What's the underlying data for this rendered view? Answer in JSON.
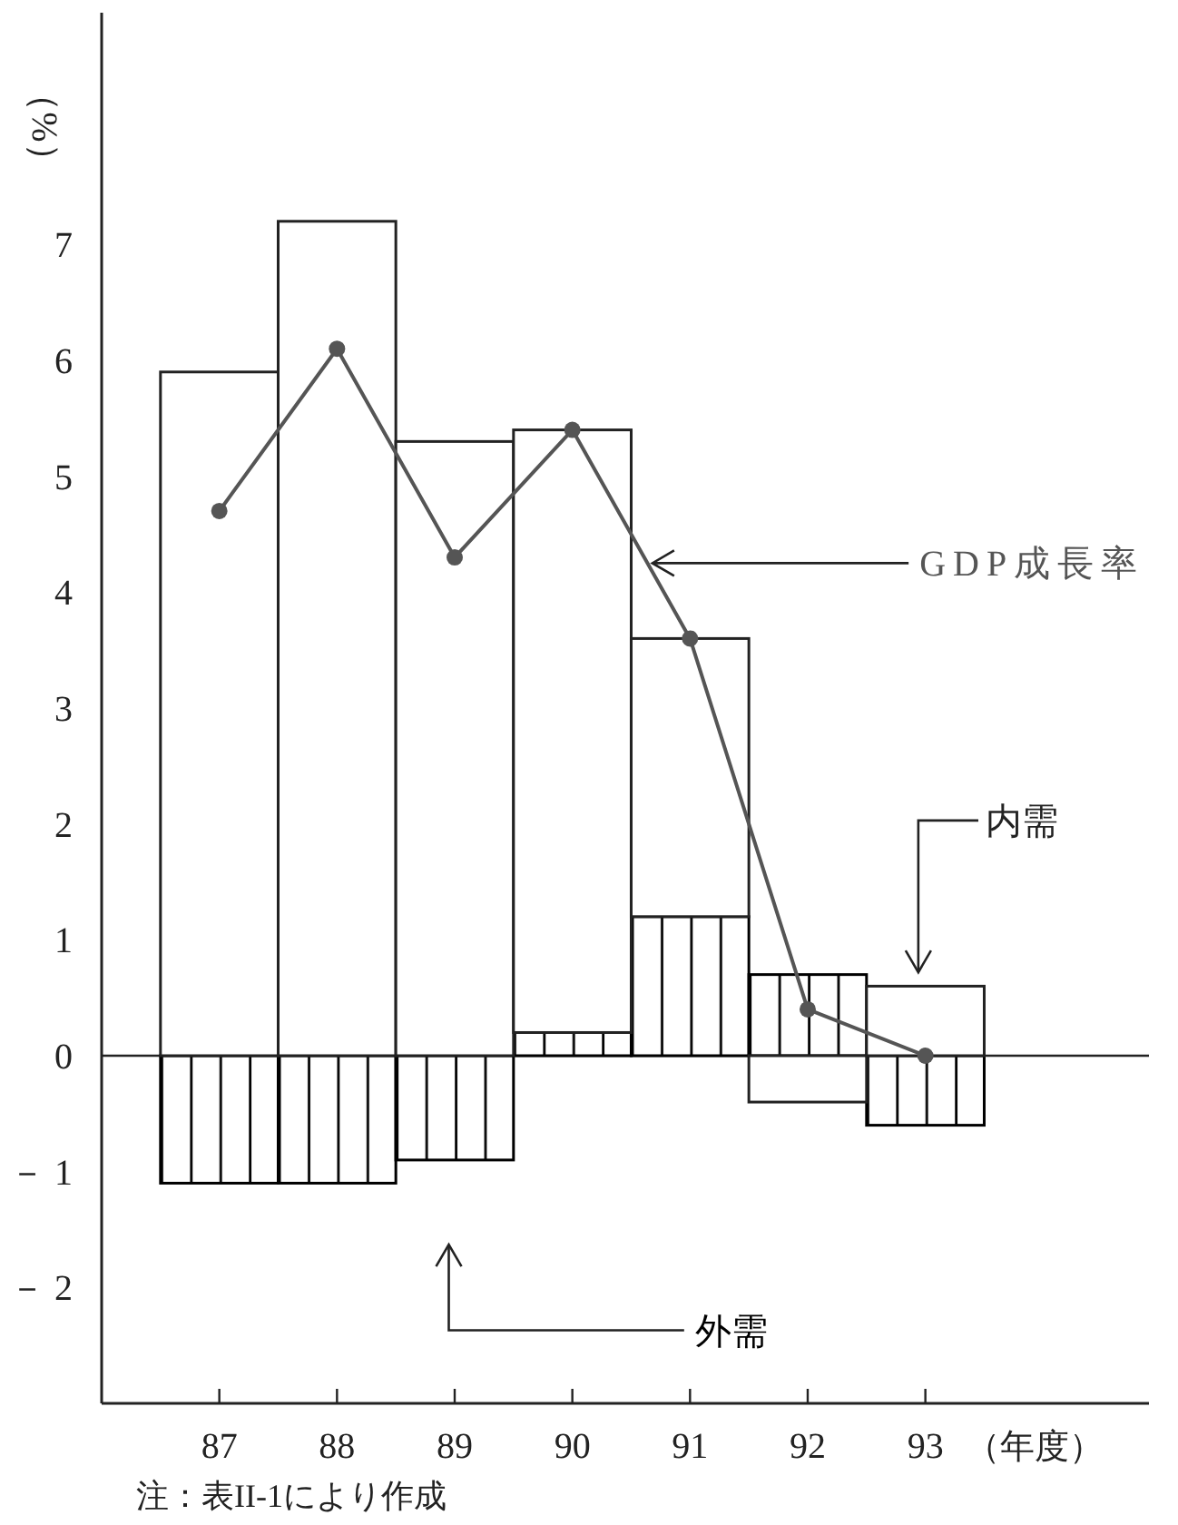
{
  "chart_data": {
    "type": "bar",
    "stacked": true,
    "ylabel": "（%）",
    "xlabel": "（年度）",
    "categories": [
      "87",
      "88",
      "89",
      "90",
      "91",
      "92",
      "93"
    ],
    "ylim": [
      -3,
      9
    ],
    "yticks": [
      {
        "value": -2,
        "label": "－ 2"
      },
      {
        "value": -1,
        "label": "－ 1"
      },
      0,
      1,
      2,
      3,
      4,
      5,
      6,
      7
    ],
    "ref_lines": [
      {
        "axis": "y",
        "value": 0,
        "color": "#222222"
      }
    ],
    "series": [
      {
        "name": "外需",
        "color": "#000000",
        "values": [
          -1.1,
          -1.1,
          -0.9,
          0.2,
          1.2,
          0.7,
          -0.6
        ]
      },
      {
        "name": "内需",
        "color": "#ffffff",
        "values": [
          5.9,
          7.2,
          5.3,
          5.2,
          2.4,
          -0.4,
          0.6
        ]
      },
      {
        "name": "GDP成長率",
        "type": "line",
        "color": "#555555",
        "marker": "circle",
        "line_style": "solid",
        "values": [
          4.7,
          6.1,
          4.3,
          5.4,
          3.6,
          0.4,
          0
        ]
      }
    ],
    "annotations": [
      "注：表II-1により作成"
    ]
  }
}
